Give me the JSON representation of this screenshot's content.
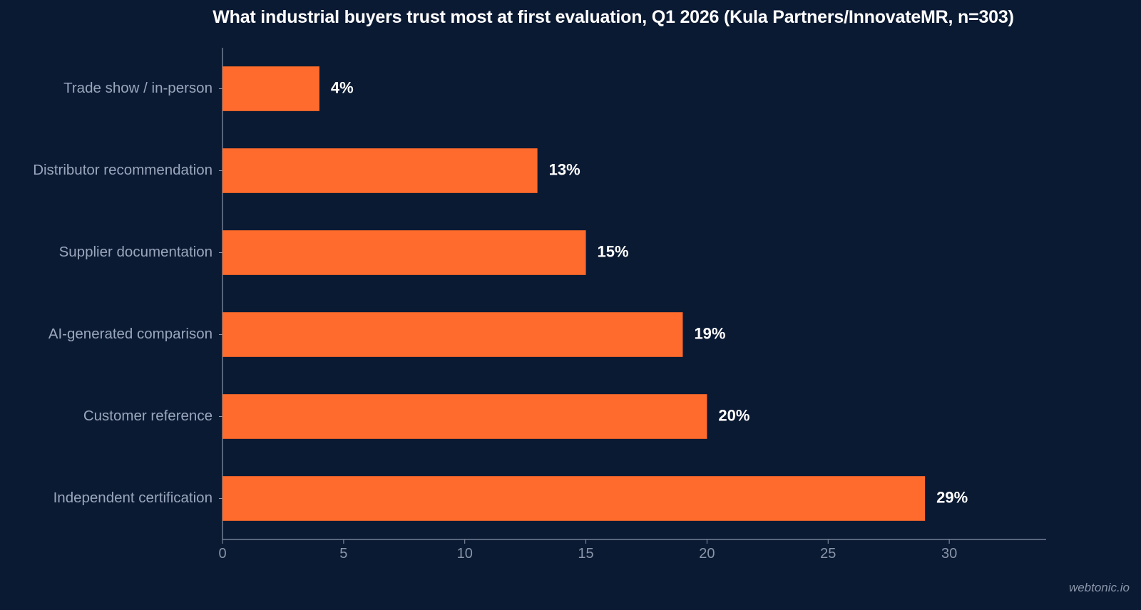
{
  "chart_data": {
    "type": "bar",
    "orientation": "horizontal",
    "title": "What industrial buyers trust most at first evaluation, Q1 2026 (Kula Partners/InnovateMR, n=303)",
    "xlabel": "",
    "ylabel": "",
    "categories": [
      "Trade show / in-person",
      "Distributor recommendation",
      "Supplier documentation",
      "AI-generated comparison",
      "Customer reference",
      "Independent certification"
    ],
    "values": [
      4,
      13,
      15,
      19,
      20,
      29
    ],
    "data_labels": [
      "4%",
      "13%",
      "15%",
      "19%",
      "20%",
      "29%"
    ],
    "xlim": [
      0,
      34
    ],
    "xticks": [
      0,
      5,
      10,
      15,
      20,
      25,
      30
    ],
    "grid": false,
    "legend": "none"
  },
  "colors": {
    "background": "#0b1a33",
    "bar": "#ff6b2c",
    "axis": "#8a95a8",
    "tick_label": "#8a95a8",
    "category_label": "#9aa6bb",
    "value_label": "#ffffff",
    "title": "#ffffff"
  },
  "watermark": "webtonic.io"
}
